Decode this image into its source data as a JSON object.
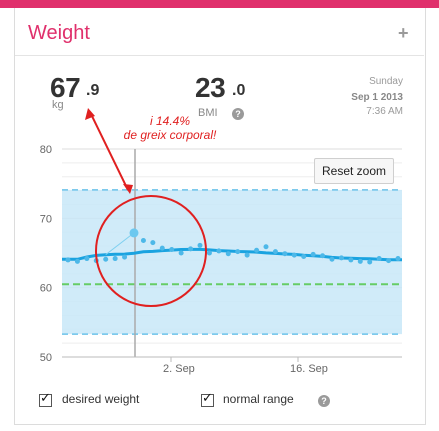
{
  "header": {
    "title": "Weight",
    "add_icon": "plus-icon"
  },
  "stats": {
    "weight_int": "67",
    "weight_dec": ".9",
    "weight_unit": "kg",
    "bmi_int": "23",
    "bmi_dec": ".0",
    "bmi_label": "BMI"
  },
  "date": {
    "weekday": "Sunday",
    "day": "Sep 1 2013",
    "time": "7:36 AM"
  },
  "annotation": {
    "line1": "i 14.4%",
    "line2": "de greix corporal!"
  },
  "chart_data": {
    "type": "line",
    "y_ticks": [
      "80",
      "70",
      "60",
      "50"
    ],
    "ylim": [
      50,
      80
    ],
    "x_ticks": [
      "2. Sep",
      "16. Sep"
    ],
    "normal_range": [
      53.3,
      74.1
    ],
    "desired_weight": 60.5,
    "selected_point": {
      "date": "Sep 1 2013",
      "value": 67.9
    },
    "series": [
      {
        "values": [
          64.0,
          63.8,
          64.2,
          63.9,
          64.1,
          64.2,
          64.4,
          67.9,
          66.8,
          66.5,
          65.7,
          65.5,
          65.0,
          65.6,
          66.1,
          65.0,
          65.3,
          64.9,
          65.2,
          64.7,
          65.4,
          65.9,
          65.2,
          64.9,
          64.7,
          64.5,
          64.8,
          64.6,
          64.1,
          64.3,
          64.0,
          63.8,
          63.7,
          64.2,
          63.9,
          64.2
        ]
      }
    ]
  },
  "controls": {
    "reset_zoom": "Reset zoom",
    "desired_weight_label": "desired weight",
    "normal_range_label": "normal range"
  }
}
